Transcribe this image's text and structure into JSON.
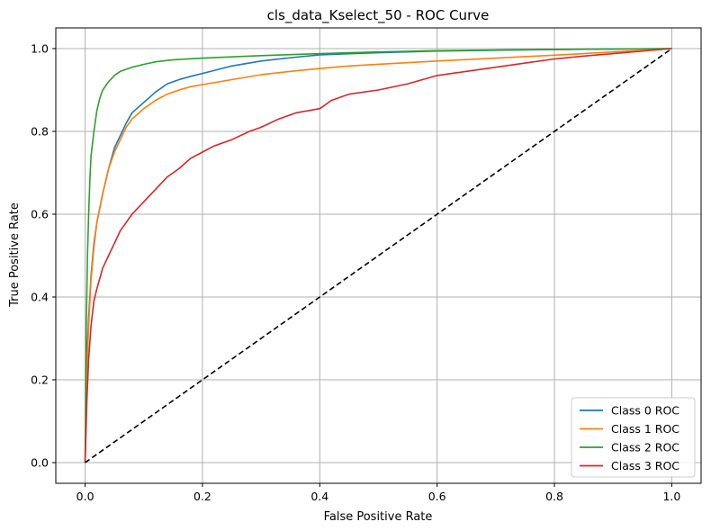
{
  "chart_data": {
    "type": "line",
    "title": "cls_data_Kselect_50 - ROC Curve",
    "xlabel": "False Positive Rate",
    "ylabel": "True Positive Rate",
    "xlim": [
      -0.05,
      1.05
    ],
    "ylim": [
      -0.05,
      1.05
    ],
    "xticks": [
      "0.0",
      "0.2",
      "0.4",
      "0.6",
      "0.8",
      "1.0"
    ],
    "yticks": [
      "0.0",
      "0.2",
      "0.4",
      "0.6",
      "0.8",
      "1.0"
    ],
    "grid": true,
    "legend_position": "lower-right",
    "series": [
      {
        "name": "Class 0 ROC",
        "color": "#1f77b4",
        "x": [
          0.0,
          0.003,
          0.006,
          0.01,
          0.015,
          0.02,
          0.03,
          0.04,
          0.05,
          0.06,
          0.07,
          0.08,
          0.1,
          0.12,
          0.14,
          0.16,
          0.18,
          0.2,
          0.25,
          0.3,
          0.35,
          0.4,
          0.5,
          0.6,
          0.7,
          0.8,
          0.9,
          1.0
        ],
        "y": [
          0.0,
          0.25,
          0.35,
          0.45,
          0.53,
          0.58,
          0.65,
          0.71,
          0.76,
          0.79,
          0.82,
          0.845,
          0.87,
          0.895,
          0.915,
          0.925,
          0.933,
          0.94,
          0.958,
          0.97,
          0.978,
          0.985,
          0.99,
          0.994,
          0.996,
          0.998,
          0.999,
          1.0
        ]
      },
      {
        "name": "Class 1 ROC",
        "color": "#ff7f0e",
        "x": [
          0.0,
          0.003,
          0.006,
          0.01,
          0.015,
          0.02,
          0.03,
          0.04,
          0.05,
          0.06,
          0.07,
          0.08,
          0.1,
          0.12,
          0.14,
          0.16,
          0.18,
          0.2,
          0.25,
          0.3,
          0.35,
          0.4,
          0.45,
          0.5,
          0.6,
          0.7,
          0.8,
          0.9,
          1.0
        ],
        "y": [
          0.0,
          0.22,
          0.33,
          0.44,
          0.52,
          0.58,
          0.65,
          0.71,
          0.75,
          0.78,
          0.81,
          0.83,
          0.855,
          0.875,
          0.89,
          0.9,
          0.908,
          0.913,
          0.925,
          0.937,
          0.945,
          0.952,
          0.958,
          0.962,
          0.97,
          0.977,
          0.984,
          0.992,
          1.0
        ]
      },
      {
        "name": "Class 2 ROC",
        "color": "#2ca02c",
        "x": [
          0.0,
          0.002,
          0.004,
          0.006,
          0.008,
          0.01,
          0.015,
          0.02,
          0.025,
          0.03,
          0.04,
          0.05,
          0.06,
          0.08,
          0.1,
          0.12,
          0.15,
          0.2,
          0.3,
          0.4,
          0.5,
          0.6,
          0.8,
          1.0
        ],
        "y": [
          0.0,
          0.33,
          0.5,
          0.6,
          0.68,
          0.74,
          0.8,
          0.85,
          0.88,
          0.9,
          0.92,
          0.935,
          0.945,
          0.955,
          0.962,
          0.968,
          0.973,
          0.977,
          0.983,
          0.988,
          0.992,
          0.995,
          0.998,
          1.0
        ]
      },
      {
        "name": "Class 3 ROC",
        "color": "#d62728",
        "x": [
          0.0,
          0.003,
          0.006,
          0.01,
          0.015,
          0.02,
          0.03,
          0.04,
          0.05,
          0.06,
          0.07,
          0.08,
          0.1,
          0.12,
          0.14,
          0.16,
          0.18,
          0.2,
          0.22,
          0.25,
          0.28,
          0.3,
          0.33,
          0.36,
          0.4,
          0.42,
          0.45,
          0.5,
          0.55,
          0.6,
          0.65,
          0.7,
          0.75,
          0.8,
          0.85,
          0.9,
          0.95,
          1.0
        ],
        "y": [
          0.0,
          0.15,
          0.25,
          0.33,
          0.39,
          0.42,
          0.47,
          0.5,
          0.53,
          0.56,
          0.58,
          0.6,
          0.63,
          0.66,
          0.69,
          0.71,
          0.735,
          0.75,
          0.765,
          0.78,
          0.8,
          0.81,
          0.83,
          0.845,
          0.855,
          0.875,
          0.89,
          0.9,
          0.915,
          0.935,
          0.945,
          0.955,
          0.965,
          0.975,
          0.982,
          0.988,
          0.994,
          1.0
        ]
      }
    ],
    "reference_line": {
      "x": [
        0,
        1
      ],
      "y": [
        0,
        1
      ],
      "color": "#000000",
      "style": "dashed"
    }
  }
}
